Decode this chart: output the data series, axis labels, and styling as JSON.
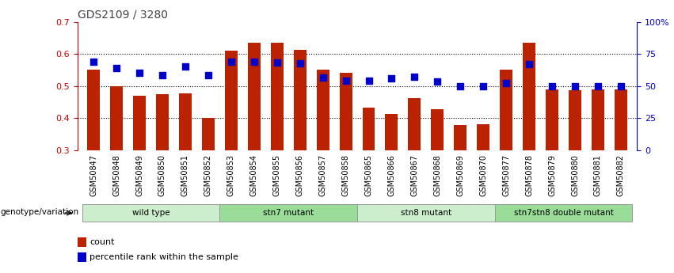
{
  "title": "GDS2109 / 3280",
  "samples": [
    "GSM50847",
    "GSM50848",
    "GSM50849",
    "GSM50850",
    "GSM50851",
    "GSM50852",
    "GSM50853",
    "GSM50854",
    "GSM50855",
    "GSM50856",
    "GSM50857",
    "GSM50858",
    "GSM50865",
    "GSM50866",
    "GSM50867",
    "GSM50868",
    "GSM50869",
    "GSM50870",
    "GSM50877",
    "GSM50878",
    "GSM50879",
    "GSM50880",
    "GSM50881",
    "GSM50882"
  ],
  "bar_values": [
    0.55,
    0.498,
    0.47,
    0.475,
    0.478,
    0.4,
    0.61,
    0.635,
    0.635,
    0.612,
    0.55,
    0.54,
    0.433,
    0.413,
    0.463,
    0.428,
    0.378,
    0.38,
    0.55,
    0.635,
    0.49,
    0.488,
    0.49,
    0.49
  ],
  "dot_values": [
    0.575,
    0.556,
    0.542,
    0.533,
    0.56,
    0.533,
    0.575,
    0.575,
    0.572,
    0.57,
    0.527,
    0.517,
    0.517,
    0.523,
    0.53,
    0.515,
    0.498,
    0.498,
    0.51,
    0.568,
    0.5,
    0.498,
    0.498,
    0.498
  ],
  "groups": [
    {
      "label": "wild type",
      "start": 0,
      "end": 6,
      "color": "#cceecc"
    },
    {
      "label": "stn7 mutant",
      "start": 6,
      "end": 12,
      "color": "#99dd99"
    },
    {
      "label": "stn8 mutant",
      "start": 12,
      "end": 18,
      "color": "#cceecc"
    },
    {
      "label": "stn7stn8 double mutant",
      "start": 18,
      "end": 24,
      "color": "#99dd99"
    }
  ],
  "ylim_left": [
    0.3,
    0.7
  ],
  "ylim_right": [
    0,
    100
  ],
  "yticks_left": [
    0.3,
    0.4,
    0.5,
    0.6,
    0.7
  ],
  "yticks_right": [
    0,
    25,
    50,
    75,
    100
  ],
  "ytick_labels_right": [
    "0",
    "25",
    "50",
    "75",
    "100%"
  ],
  "bar_color": "#bb2200",
  "dot_color": "#0000cc",
  "bar_width": 0.55,
  "dot_size": 30,
  "genotype_label": "genotype/variation",
  "legend_count": "count",
  "legend_percentile": "percentile rank within the sample",
  "title_color": "#444444",
  "left_axis_color": "#cc0000",
  "right_axis_color": "#0000cc",
  "xtick_bg": "#cccccc"
}
